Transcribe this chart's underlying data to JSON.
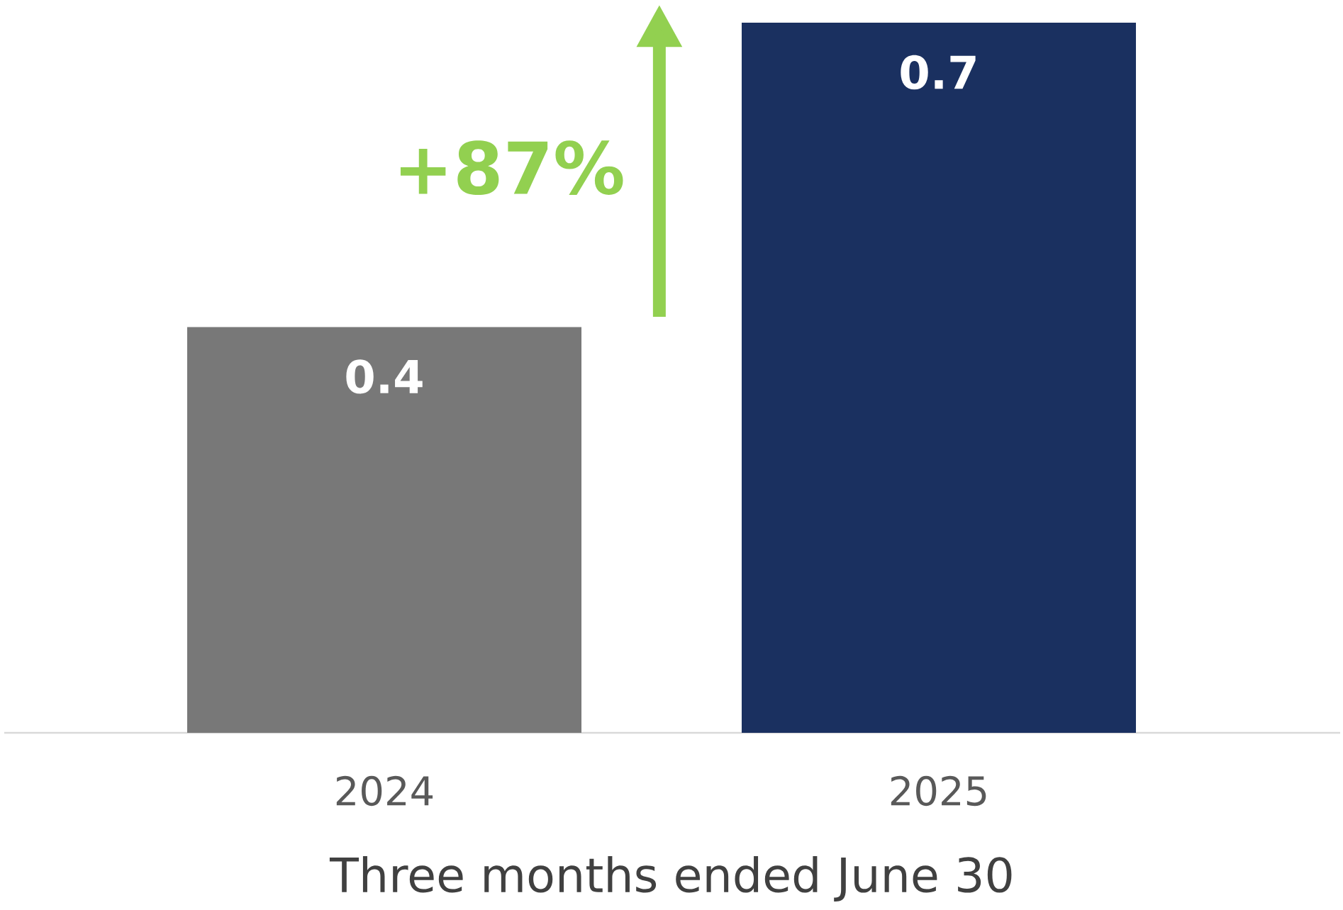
{
  "chart_data": {
    "type": "bar",
    "xlabel": "Three months ended June 30",
    "categories": [
      "2024",
      "2025"
    ],
    "values": [
      0.4,
      0.7
    ],
    "colors": [
      "#787878",
      "#1a3060"
    ],
    "data_labels": true,
    "annotations": [
      "+87%"
    ]
  }
}
